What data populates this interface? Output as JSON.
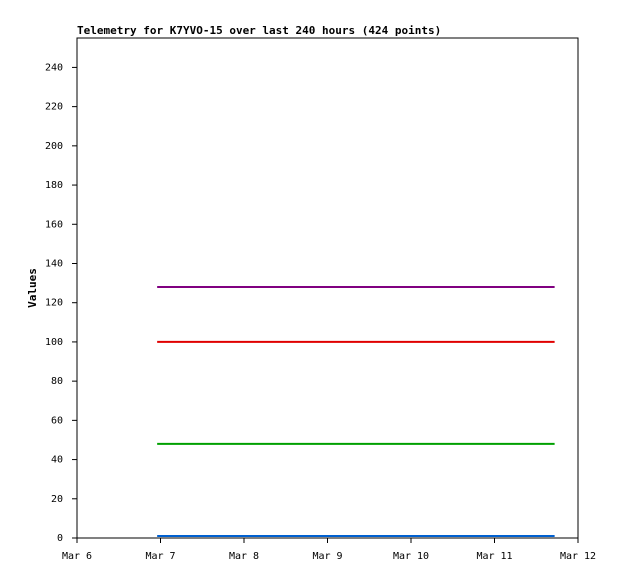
{
  "chart_data": {
    "type": "line",
    "title": "Telemetry for K7YVO-15 over last 240 hours (424 points)",
    "y_label": "Values",
    "x": [
      6.96,
      11.72
    ],
    "xlim": [
      6,
      12
    ],
    "xticks": [
      {
        "value": 6,
        "label": "Mar 6"
      },
      {
        "value": 7,
        "label": "Mar 7"
      },
      {
        "value": 8,
        "label": "Mar 8"
      },
      {
        "value": 9,
        "label": "Mar 9"
      },
      {
        "value": 10,
        "label": "Mar 10"
      },
      {
        "value": 11,
        "label": "Mar 11"
      },
      {
        "value": 12,
        "label": "Mar 12"
      }
    ],
    "ylim": [
      0,
      255
    ],
    "yticks": [
      0,
      20,
      40,
      60,
      80,
      100,
      120,
      140,
      160,
      180,
      200,
      220,
      240
    ],
    "series": [
      {
        "color": "#800080",
        "values": [
          128,
          128
        ]
      },
      {
        "color": "#e00000",
        "values": [
          100,
          100
        ]
      },
      {
        "color": "#00a000",
        "values": [
          48,
          48
        ]
      },
      {
        "color": "#0060d0",
        "values": [
          1,
          1
        ]
      }
    ]
  }
}
